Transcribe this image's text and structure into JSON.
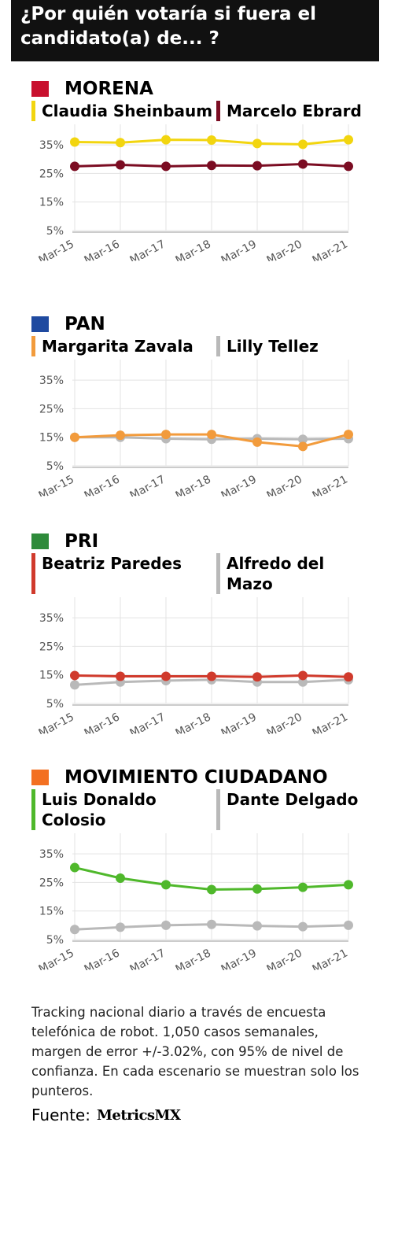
{
  "title": "¿Por quién votaría si fuera el candidato(a) de... ?",
  "chart_data": [
    {
      "type": "line",
      "title": "MORENA",
      "categories": [
        "Mar-15",
        "Mar-16",
        "Mar-17",
        "Mar-18",
        "Mar-19",
        "Mar-20",
        "Mar-21"
      ],
      "series": [
        {
          "name": "Claudia Sheinbaum",
          "color": "#f2d50f",
          "values": [
            36,
            35.8,
            36.8,
            36.7,
            35.5,
            35.2,
            36.8
          ]
        },
        {
          "name": "Marcelo Ebrard",
          "color": "#7b0c22",
          "values": [
            27.5,
            28,
            27.5,
            27.8,
            27.7,
            28.3,
            27.5
          ]
        }
      ],
      "ylim": [
        5,
        40
      ],
      "yticks": [
        {
          "value": 5,
          "label": "5%"
        },
        {
          "value": 15,
          "label": "15%"
        },
        {
          "value": 25,
          "label": "25%"
        },
        {
          "value": 35,
          "label": "35%"
        }
      ],
      "grid": true
    },
    {
      "type": "line",
      "title": "PAN",
      "categories": [
        "Mar-15",
        "Mar-16",
        "Mar-17",
        "Mar-18",
        "Mar-19",
        "Mar-20",
        "Mar-21"
      ],
      "series": [
        {
          "name": "Margarita Zavala",
          "color": "#f29b3c",
          "values": [
            15,
            15.7,
            16,
            16,
            13.3,
            11.8,
            16
          ]
        },
        {
          "name": "Lilly Tellez",
          "color": "#b9b9b9",
          "values": [
            15,
            15,
            14.5,
            14.3,
            14.5,
            14.3,
            14.5
          ]
        }
      ],
      "ylim": [
        5,
        40
      ],
      "yticks": [
        {
          "value": 5,
          "label": "5%"
        },
        {
          "value": 15,
          "label": "15%"
        },
        {
          "value": 25,
          "label": "25%"
        },
        {
          "value": 35,
          "label": "35%"
        }
      ],
      "grid": true
    },
    {
      "type": "line",
      "title": "PRI",
      "categories": [
        "Mar-15",
        "Mar-16",
        "Mar-17",
        "Mar-18",
        "Mar-19",
        "Mar-20",
        "Mar-21"
      ],
      "series": [
        {
          "name": "Beatriz Paredes",
          "color": "#d03a2c",
          "values": [
            14.8,
            14.5,
            14.5,
            14.5,
            14.3,
            14.8,
            14.3
          ]
        },
        {
          "name": "Alfredo del Mazo",
          "color": "#b9b9b9",
          "values": [
            11.5,
            12.5,
            13,
            13.3,
            12.5,
            12.5,
            13.3
          ]
        }
      ],
      "ylim": [
        5,
        40
      ],
      "yticks": [
        {
          "value": 5,
          "label": "5%"
        },
        {
          "value": 15,
          "label": "15%"
        },
        {
          "value": 25,
          "label": "25%"
        },
        {
          "value": 35,
          "label": "35%"
        }
      ],
      "grid": true
    },
    {
      "type": "line",
      "title": "MOVIMIENTO CIUDADANO",
      "categories": [
        "Mar-15",
        "Mar-16",
        "Mar-17",
        "Mar-18",
        "Mar-19",
        "Mar-20",
        "Mar-21"
      ],
      "series": [
        {
          "name": "Luis Donaldo Colosio",
          "color": "#4fb82b",
          "values": [
            30.2,
            26.5,
            24.2,
            22.5,
            22.7,
            23.3,
            24.2
          ]
        },
        {
          "name": "Dante Delgado",
          "color": "#b9b9b9",
          "values": [
            8.5,
            9.3,
            10,
            10.3,
            9.8,
            9.5,
            10
          ]
        }
      ],
      "ylim": [
        5,
        40
      ],
      "yticks": [
        {
          "value": 5,
          "label": "5%"
        },
        {
          "value": 15,
          "label": "15%"
        },
        {
          "value": 25,
          "label": "25%"
        },
        {
          "value": 35,
          "label": "35%"
        }
      ],
      "grid": true
    }
  ],
  "note": "Tracking nacional diario a través de encuesta telefónica de robot. 1,050 casos semanales, margen de error +/-3.02%, con 95% de nivel de confianza. En cada escenario se muestran solo los punteros.",
  "source_label": "Fuente:",
  "source_logo": "MetricsMX"
}
